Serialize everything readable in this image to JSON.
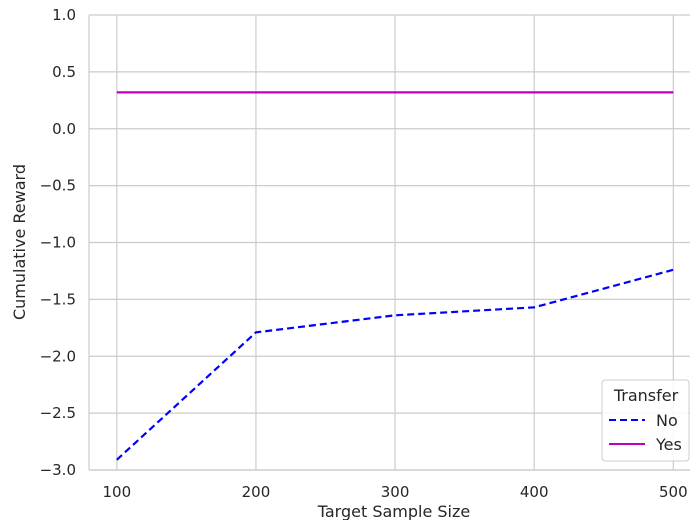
{
  "chart_data": {
    "type": "line",
    "title": "",
    "xlabel": "Target Sample Size",
    "ylabel": "Cumulative Reward",
    "x": [
      100,
      200,
      300,
      400,
      500
    ],
    "xlim": [
      80,
      512
    ],
    "ylim": [
      -3.0,
      1.0
    ],
    "x_ticks": [
      100,
      200,
      300,
      400,
      500
    ],
    "x_tick_labels": [
      "100",
      "200",
      "300",
      "400",
      "500"
    ],
    "y_ticks": [
      1.0,
      0.5,
      0.0,
      -0.5,
      -1.0,
      -1.5,
      -2.0,
      -2.5,
      -3.0
    ],
    "y_tick_labels": [
      "1.0",
      "0.5",
      "0.0",
      "−0.5",
      "−1.0",
      "−1.5",
      "−2.0",
      "−2.5",
      "−3.0"
    ],
    "grid": true,
    "legend": {
      "title": "Transfer",
      "position": "lower-right"
    },
    "series": [
      {
        "name": "No",
        "values": [
          -2.91,
          -1.79,
          -1.64,
          -1.57,
          -1.24
        ],
        "color": "#0000ff",
        "style": "dashed"
      },
      {
        "name": "Yes",
        "values": [
          0.32,
          0.32,
          0.32,
          0.32,
          0.32
        ],
        "color": "#bf00bf",
        "style": "solid"
      }
    ]
  }
}
